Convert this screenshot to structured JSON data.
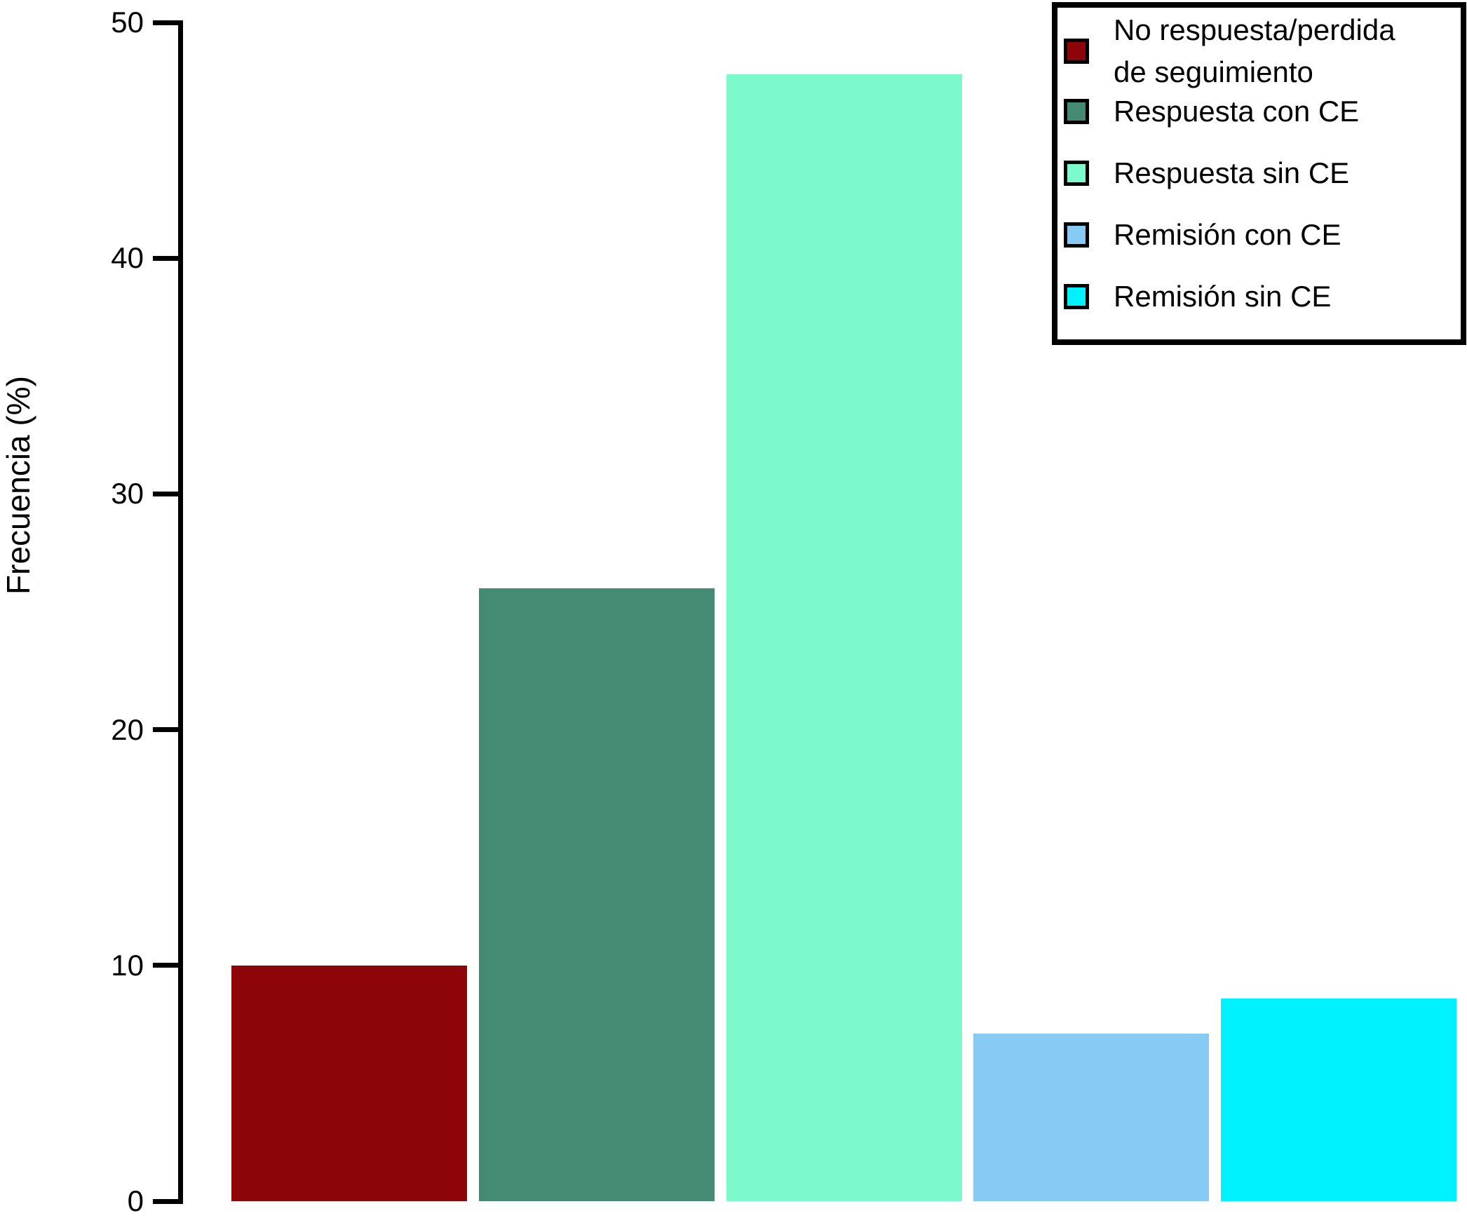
{
  "figure": {
    "background_color": "#ffffff",
    "text_color": "#000000"
  },
  "chart_data": {
    "type": "bar",
    "title": "",
    "xlabel": "",
    "ylabel": "Frecuencia (%)",
    "ylim": [
      0,
      50
    ],
    "yticks": [
      0,
      10,
      20,
      30,
      40,
      50
    ],
    "grid": false,
    "x_axis_line": false,
    "categories": [
      "No respuesta/perdida de seguimiento",
      "Respuesta con CE",
      "Respuesta sin CE",
      "Remisión con CE",
      "Remisión sin CE"
    ],
    "values": [
      10,
      26,
      47.8,
      7.1,
      8.6
    ],
    "bar_colors": [
      "#8E0509",
      "#458B74",
      "#7DFACC",
      "#87CBF4",
      "#00F2FE"
    ],
    "legend": {
      "position": "top-right",
      "border_color": "#000000",
      "background_color": "#ffffff",
      "entries": [
        {
          "label": "No respuesta/perdida de seguimiento",
          "lines": [
            "No respuesta/perdida",
            "de seguimiento"
          ],
          "color": "#8E0509"
        },
        {
          "label": "Respuesta con CE",
          "lines": [
            "Respuesta con CE"
          ],
          "color": "#458B74"
        },
        {
          "label": "Respuesta sin CE",
          "lines": [
            "Respuesta sin CE"
          ],
          "color": "#7DFACC"
        },
        {
          "label": "Remisión con CE",
          "lines": [
            "Remisión con CE"
          ],
          "color": "#87CBF4"
        },
        {
          "label": "Remisión sin CE",
          "lines": [
            "Remisión sin CE"
          ],
          "color": "#00F2FE"
        }
      ]
    }
  }
}
